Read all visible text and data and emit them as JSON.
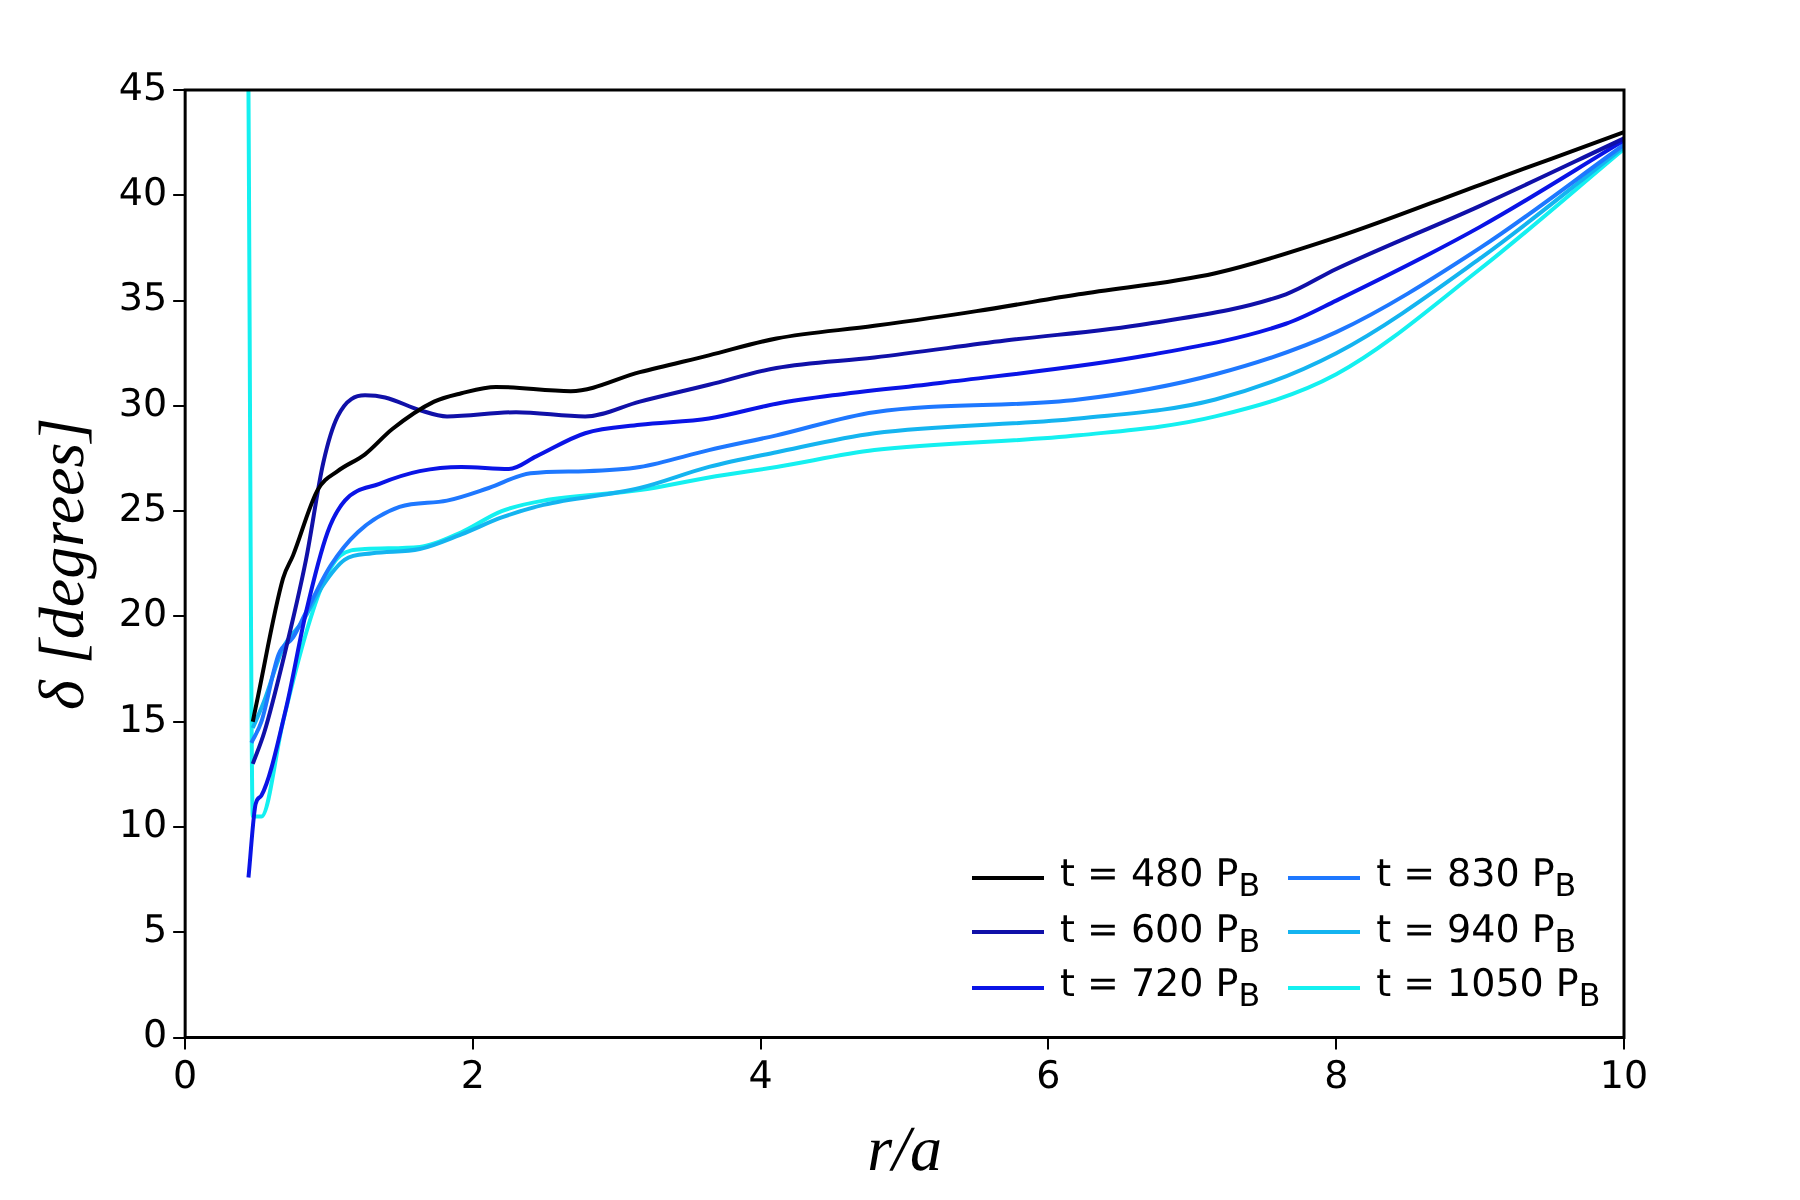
{
  "chart_data": {
    "type": "line",
    "xlabel": "r/a",
    "ylabel": "δ [degrees]",
    "xlim": [
      0,
      10
    ],
    "xticks": [
      0,
      2,
      4,
      6,
      8,
      10
    ],
    "ylim": [
      0,
      45
    ],
    "yticks": [
      0,
      5,
      10,
      15,
      20,
      25,
      30,
      35,
      40,
      45
    ],
    "grid": false,
    "legend": "bottom right",
    "marker": "none",
    "line_style": "solid",
    "series": [
      {
        "name": "t = 480 P$_{B}$",
        "color": "#000000",
        "x": [
          0.47,
          0.5,
          0.68,
          0.75,
          0.92,
          1.06,
          1.25,
          1.44,
          1.73,
          1.92,
          2.16,
          2.68,
          3.16,
          3.64,
          4.11,
          4.79,
          5.5,
          6.21,
          7.16,
          8,
          9,
          10
        ],
        "values": [
          15,
          16,
          21.8,
          22.9,
          26,
          26.9,
          27.7,
          28.9,
          30.2,
          30.6,
          30.9,
          30.7,
          31.6,
          32.4,
          33.2,
          33.8,
          34.5,
          35.3,
          36.3,
          38,
          40.5,
          43
        ]
      },
      {
        "name": "t = 600 P$_{B}$",
        "color": "#1010a8",
        "x": [
          0.47,
          0.55,
          0.68,
          0.84,
          0.96,
          1.06,
          1.25,
          1.39,
          1.63,
          1.82,
          2.3,
          2.78,
          3.16,
          3.64,
          4.11,
          4.79,
          5.7,
          6.69,
          7.65,
          8,
          9,
          10
        ],
        "values": [
          13,
          14.5,
          17.9,
          22.7,
          27.3,
          29.5,
          30.5,
          30.4,
          29.8,
          29.5,
          29.7,
          29.5,
          30.2,
          31,
          31.8,
          32.3,
          33.1,
          33.9,
          35.3,
          36.5,
          39.5,
          42.7
        ]
      },
      {
        "name": "t = 720 P$_{B}$",
        "color": "#0a14e6",
        "x": [
          0.44,
          0.49,
          0.53,
          0.7,
          0.84,
          0.99,
          1.11,
          1.35,
          1.63,
          1.92,
          2.25,
          2.44,
          2.78,
          3.16,
          3.64,
          4.11,
          4.5,
          5.26,
          6.69,
          7.65,
          8,
          9,
          10
        ],
        "values": [
          7.6,
          11.1,
          11.5,
          15.6,
          20.2,
          24,
          25.5,
          26.3,
          26.9,
          27.1,
          27,
          27.6,
          28.7,
          29.1,
          29.4,
          30.1,
          30.5,
          31.1,
          32.4,
          33.9,
          35,
          38.5,
          42.6
        ]
      },
      {
        "name": "t = 830 P$_{B}$",
        "color": "#1e78ff",
        "x": [
          0.46,
          0.53,
          0.65,
          0.75,
          0.84,
          1.01,
          1.2,
          1.49,
          1.82,
          2.11,
          2.4,
          2.78,
          3.16,
          3.64,
          4.11,
          4.79,
          6.21,
          7.16,
          8,
          9,
          10
        ],
        "values": [
          14,
          15,
          18.2,
          19,
          20.2,
          22.4,
          24,
          25.2,
          25.5,
          26.1,
          26.8,
          26.9,
          27.1,
          27.9,
          28.6,
          29.7,
          30.3,
          31.5,
          33.5,
          37.5,
          42.4
        ]
      },
      {
        "name": "t = 940 P$_{B}$",
        "color": "#14b4f0",
        "x": [
          0.47,
          0.55,
          0.68,
          0.82,
          0.96,
          1.11,
          1.3,
          1.63,
          1.92,
          2.2,
          2.49,
          3.16,
          3.64,
          4.11,
          4.79,
          6.21,
          7.16,
          8,
          9,
          10
        ],
        "values": [
          14.7,
          16,
          18.5,
          19.8,
          21.5,
          22.7,
          23,
          23.2,
          23.9,
          24.7,
          25.3,
          26.1,
          27.1,
          27.8,
          28.7,
          29.4,
          30.3,
          32.5,
          37,
          42.3
        ]
      },
      {
        "name": "t = 1050 P$_{B}$",
        "color": "#14f0f0",
        "x": [
          0.44,
          0.47,
          0.53,
          0.68,
          0.84,
          0.96,
          1.08,
          1.25,
          1.63,
          1.92,
          2.2,
          2.49,
          3.16,
          3.64,
          4.11,
          4.79,
          6.21,
          7.16,
          8,
          9,
          10
        ],
        "values": [
          45,
          10.5,
          10.5,
          15,
          19.2,
          21.6,
          22.9,
          23.2,
          23.3,
          24,
          25,
          25.5,
          26,
          26.6,
          27.1,
          27.9,
          28.6,
          29.5,
          31.5,
          36.5,
          42.2
        ]
      }
    ]
  }
}
